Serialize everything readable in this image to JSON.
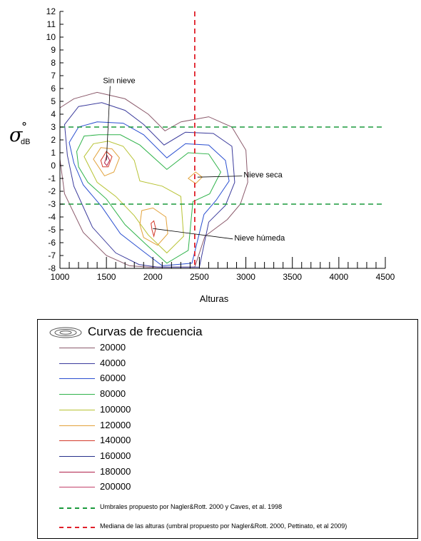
{
  "chart_data": {
    "type": "contour",
    "xlabel": "Alturas",
    "ylabel": "σ°dB",
    "ylabel_main": "σ",
    "ylabel_sup": "°",
    "ylabel_sub": "dB",
    "xlim": [
      1000,
      4500
    ],
    "ylim": [
      -8,
      12
    ],
    "x_ticks": [
      1000,
      1500,
      2000,
      2500,
      3000,
      3500,
      4000,
      4500
    ],
    "y_ticks": [
      12,
      11,
      10,
      9,
      8,
      7,
      6,
      5,
      4,
      3,
      2,
      1,
      0,
      -1,
      -2,
      -3,
      -4,
      -5,
      -6,
      -7,
      -8
    ],
    "grid": false,
    "legend_title": "Curvas de frecuencia",
    "levels": [
      {
        "value": "20000",
        "color": "#8b5a6b"
      },
      {
        "value": "40000",
        "color": "#3b3b9c"
      },
      {
        "value": "60000",
        "color": "#2a4fd0"
      },
      {
        "value": "80000",
        "color": "#2fb34a"
      },
      {
        "value": "100000",
        "color": "#b7c232"
      },
      {
        "value": "120000",
        "color": "#e2a23a"
      },
      {
        "value": "140000",
        "color": "#d33a2a"
      },
      {
        "value": "160000",
        "color": "#25308a"
      },
      {
        "value": "180000",
        "color": "#b0204a"
      },
      {
        "value": "200000",
        "color": "#c3406a"
      }
    ],
    "thresholds": {
      "values": [
        3,
        -3
      ],
      "color": "#1a9a3c",
      "label": "Umbrales propuesto por Nagler&Rott. 2000 y Caves, et al. 1998"
    },
    "median": {
      "value": 2450,
      "color": "#e0202a",
      "label": "Mediana de las alturas (umbral propuesto por Nagler&Rott. 2000, Pettinato, et al 2009)"
    },
    "annotations": [
      {
        "text": "Sin nieve",
        "point": [
          1500,
          0.4
        ],
        "text_at": [
          1540,
          6.3
        ]
      },
      {
        "text": "Nieve seca",
        "point": [
          2480,
          -0.9
        ],
        "text_at": [
          2960,
          -0.7
        ]
      },
      {
        "text": "Nieve húmeda",
        "point": [
          2000,
          -4.9
        ],
        "text_at": [
          2860,
          -5.6
        ]
      }
    ],
    "contours": [
      {
        "level": 0,
        "points": [
          [
            1000,
            4.5
          ],
          [
            1150,
            5.2
          ],
          [
            1400,
            5.7
          ],
          [
            1700,
            5.2
          ],
          [
            1950,
            4.0
          ],
          [
            2130,
            2.7
          ],
          [
            2300,
            3.4
          ],
          [
            2600,
            3.8
          ],
          [
            2850,
            3.0
          ],
          [
            3000,
            1.2
          ],
          [
            3020,
            -1.3
          ],
          [
            2940,
            -3.0
          ],
          [
            2800,
            -4.2
          ],
          [
            2560,
            -5.5
          ],
          [
            2450,
            -7.9
          ],
          [
            1950,
            -7.9
          ],
          [
            1750,
            -7.8
          ],
          [
            1500,
            -7.0
          ],
          [
            1250,
            -5.2
          ],
          [
            1050,
            -2.2
          ],
          [
            1000,
            0.5
          ]
        ]
      },
      {
        "level": 1,
        "points": [
          [
            1050,
            3.2
          ],
          [
            1200,
            4.6
          ],
          [
            1450,
            4.9
          ],
          [
            1700,
            4.3
          ],
          [
            1900,
            3.2
          ],
          [
            2120,
            1.6
          ],
          [
            2350,
            2.6
          ],
          [
            2650,
            2.5
          ],
          [
            2850,
            1.5
          ],
          [
            2880,
            -1.3
          ],
          [
            2780,
            -3.1
          ],
          [
            2600,
            -4.4
          ],
          [
            2500,
            -7.9
          ],
          [
            2050,
            -7.9
          ],
          [
            1850,
            -7.7
          ],
          [
            1600,
            -6.8
          ],
          [
            1350,
            -4.8
          ],
          [
            1150,
            -1.6
          ],
          [
            1080,
            0.8
          ]
        ]
      },
      {
        "level": 2,
        "points": [
          [
            1100,
            1.8
          ],
          [
            1200,
            3.0
          ],
          [
            1400,
            3.4
          ],
          [
            1680,
            3.3
          ],
          [
            1900,
            2.4
          ],
          [
            2150,
            0.6
          ],
          [
            2350,
            1.7
          ],
          [
            2600,
            1.6
          ],
          [
            2780,
            0.4
          ],
          [
            2820,
            -1.2
          ],
          [
            2680,
            -2.7
          ],
          [
            2550,
            -3.8
          ],
          [
            2420,
            -7.6
          ],
          [
            2100,
            -7.8
          ],
          [
            1900,
            -6.7
          ],
          [
            1650,
            -5.3
          ],
          [
            1450,
            -3.2
          ],
          [
            1250,
            -1.5
          ],
          [
            1150,
            0.2
          ]
        ]
      },
      {
        "level": 3,
        "points": [
          [
            1180,
            1.1
          ],
          [
            1260,
            2.3
          ],
          [
            1420,
            2.4
          ],
          [
            1650,
            2.4
          ],
          [
            1860,
            1.6
          ],
          [
            2150,
            -0.3
          ],
          [
            2380,
            1.0
          ],
          [
            2600,
            0.9
          ],
          [
            2730,
            -0.5
          ],
          [
            2610,
            -2.2
          ],
          [
            2430,
            -2.8
          ],
          [
            2380,
            -6.6
          ],
          [
            2150,
            -7.6
          ],
          [
            1920,
            -6.1
          ],
          [
            1700,
            -4.6
          ],
          [
            1500,
            -2.6
          ],
          [
            1300,
            -1.3
          ],
          [
            1200,
            -0.1
          ]
        ]
      },
      {
        "level": 4,
        "points": [
          [
            1260,
            0.7
          ],
          [
            1360,
            1.7
          ],
          [
            1520,
            1.9
          ],
          [
            1680,
            1.5
          ],
          [
            1800,
            0.4
          ],
          [
            1860,
            -1.2
          ],
          [
            2100,
            -1.6
          ],
          [
            2300,
            -2.4
          ],
          [
            2330,
            -5.5
          ],
          [
            2150,
            -6.8
          ],
          [
            1950,
            -5.4
          ],
          [
            1800,
            -3.9
          ],
          [
            1600,
            -2.4
          ],
          [
            1400,
            -1.3
          ]
        ]
      },
      {
        "level": 5,
        "points": [
          [
            1360,
            0.5
          ],
          [
            1440,
            1.4
          ],
          [
            1560,
            1.3
          ],
          [
            1640,
            0.6
          ],
          [
            1580,
            -0.5
          ],
          [
            1480,
            -0.8
          ]
        ]
      },
      {
        "level": 5,
        "points": [
          [
            1880,
            -3.5
          ],
          [
            2000,
            -3.3
          ],
          [
            2140,
            -4.0
          ],
          [
            2160,
            -5.3
          ],
          [
            2050,
            -6.2
          ],
          [
            1900,
            -5.6
          ],
          [
            1860,
            -4.6
          ]
        ]
      },
      {
        "level": 5,
        "points": [
          [
            2380,
            -1.0
          ],
          [
            2460,
            -0.5
          ],
          [
            2530,
            -0.9
          ],
          [
            2460,
            -1.4
          ]
        ]
      },
      {
        "level": 6,
        "points": [
          [
            1440,
            0.4
          ],
          [
            1500,
            1.1
          ],
          [
            1560,
            0.7
          ],
          [
            1520,
            -0.1
          ],
          [
            1460,
            -0.1
          ]
        ]
      },
      {
        "level": 6,
        "points": [
          [
            1980,
            -4.5
          ],
          [
            2010,
            -4.3
          ],
          [
            2030,
            -4.9
          ],
          [
            2010,
            -5.5
          ],
          [
            1990,
            -5.0
          ]
        ]
      },
      {
        "level": 8,
        "points": [
          [
            1480,
            0.2
          ],
          [
            1505,
            0.8
          ],
          [
            1535,
            0.4
          ],
          [
            1505,
            0.0
          ]
        ]
      }
    ]
  }
}
